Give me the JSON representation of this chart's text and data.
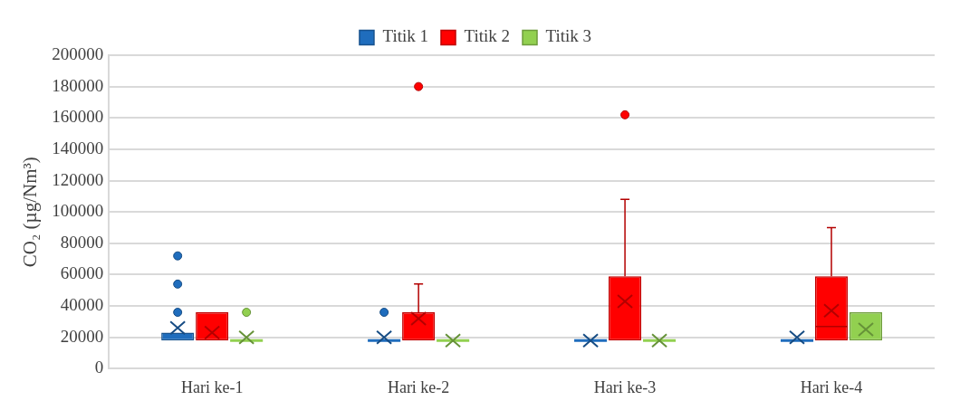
{
  "chart_data": {
    "type": "box",
    "ylabel": "CO₂ (µg/Nm³)",
    "categories": [
      "Hari ke-1",
      "Hari ke-2",
      "Hari ke-3",
      "Hari ke-4"
    ],
    "series": [
      {
        "name": "Titik 1",
        "color": "#1f6dbd",
        "boxes": [
          {
            "low": 18000,
            "q1": 18000,
            "median": 18000,
            "q3": 23000,
            "high": 23000,
            "mean": 26000,
            "outliers": [
              36000,
              54000,
              72000
            ]
          },
          {
            "low": 18000,
            "q1": 18000,
            "median": 18000,
            "q3": 18000,
            "high": 18000,
            "mean": 20000,
            "outliers": [
              36000
            ]
          },
          {
            "low": 18000,
            "q1": 18000,
            "median": 18000,
            "q3": 18000,
            "high": 18000,
            "mean": 18000
          },
          {
            "low": 18000,
            "q1": 18000,
            "median": 18000,
            "q3": 18000,
            "high": 18000,
            "mean": 20000
          }
        ]
      },
      {
        "name": "Titik 2",
        "color": "#ff0000",
        "boxes": [
          {
            "low": 18000,
            "q1": 18000,
            "median": 18000,
            "q3": 36000,
            "high": 36000,
            "mean": 23000
          },
          {
            "low": 18000,
            "q1": 18000,
            "median": 18000,
            "q3": 36000,
            "high": 54000,
            "mean": 32000,
            "outliers": [
              180000
            ]
          },
          {
            "low": 18000,
            "q1": 18000,
            "median": 18000,
            "q3": 59000,
            "high": 108000,
            "mean": 43000,
            "outliers": [
              162000
            ]
          },
          {
            "low": 18000,
            "q1": 18000,
            "median": 27000,
            "q3": 59000,
            "high": 90000,
            "mean": 37000
          }
        ]
      },
      {
        "name": "Titik 3",
        "color": "#92d050",
        "boxes": [
          {
            "low": 18000,
            "q1": 18000,
            "median": 18000,
            "q3": 18000,
            "high": 18000,
            "mean": 20000,
            "outliers": [
              36000
            ]
          },
          {
            "low": 18000,
            "q1": 18000,
            "median": 18000,
            "q3": 18000,
            "high": 18000,
            "mean": 18000
          },
          {
            "low": 18000,
            "q1": 18000,
            "median": 18000,
            "q3": 18000,
            "high": 18000,
            "mean": 18000
          },
          {
            "low": 18000,
            "q1": 18000,
            "median": 18000,
            "q3": 36000,
            "high": 36000,
            "mean": 25000
          }
        ]
      }
    ],
    "ylim": [
      0,
      200000
    ],
    "yticks": [
      0,
      20000,
      40000,
      60000,
      80000,
      100000,
      120000,
      140000,
      160000,
      180000,
      200000
    ],
    "grid": "y",
    "legend": "top"
  }
}
